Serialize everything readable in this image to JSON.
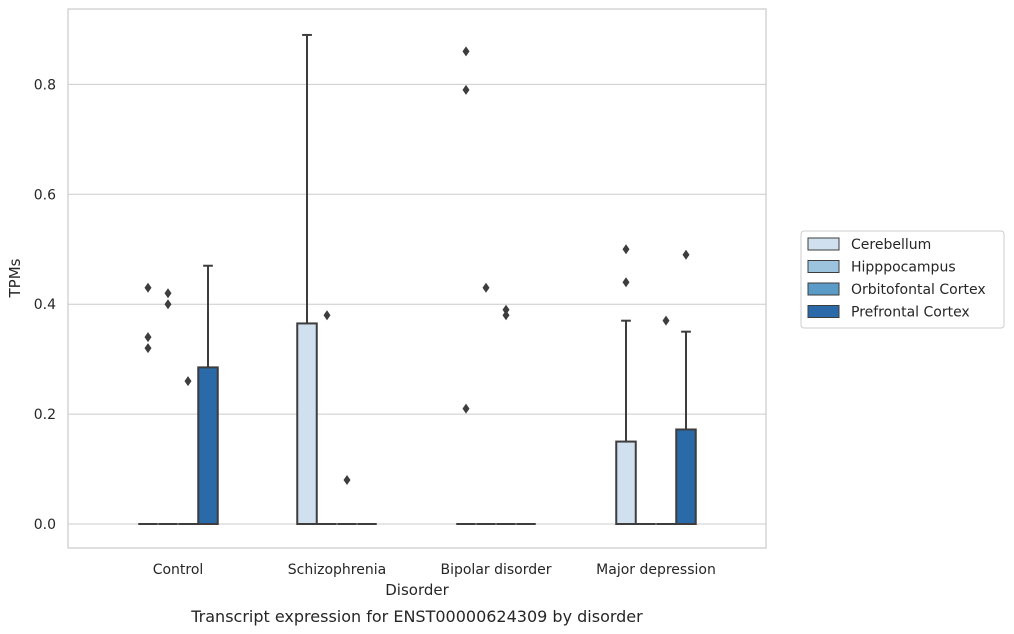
{
  "chart_data": {
    "type": "box",
    "title": "",
    "caption": "Transcript expression for ENST00000624309 by disorder",
    "xlabel": "Disorder",
    "ylabel": "TPMs",
    "ylim": [
      -0.044,
      0.935
    ],
    "yticks": [
      0.0,
      0.2,
      0.4,
      0.6,
      0.8
    ],
    "ytick_labels": [
      "0.0",
      "0.2",
      "0.4",
      "0.6",
      "0.8"
    ],
    "grid": "horizontal",
    "legend_position": "right",
    "categories": [
      "Control",
      "Schizophrenia",
      "Bipolar disorder",
      "Major depression"
    ],
    "series": [
      {
        "name": "Cerebellum",
        "color": "#d0e0ef",
        "boxes": [
          {
            "q1": 0,
            "median": 0,
            "q3": 0,
            "whisker_low": 0,
            "whisker_high": 0,
            "outliers": [
              0.43,
              0.34,
              0.32
            ]
          },
          {
            "q1": 0,
            "median": 0,
            "q3": 0.365,
            "whisker_low": 0,
            "whisker_high": 0.89,
            "outliers": []
          },
          {
            "q1": 0,
            "median": 0,
            "q3": 0,
            "whisker_low": 0,
            "whisker_high": 0,
            "outliers": [
              0.86,
              0.79,
              0.21
            ]
          },
          {
            "q1": 0,
            "median": 0,
            "q3": 0.15,
            "whisker_low": 0,
            "whisker_high": 0.37,
            "outliers": [
              0.5,
              0.44
            ]
          }
        ]
      },
      {
        "name": "Hipppocampus",
        "color": "#9dc4de",
        "boxes": [
          {
            "q1": 0,
            "median": 0,
            "q3": 0,
            "whisker_low": 0,
            "whisker_high": 0,
            "outliers": [
              0.42,
              0.4
            ]
          },
          {
            "q1": 0,
            "median": 0,
            "q3": 0,
            "whisker_low": 0,
            "whisker_high": 0,
            "outliers": [
              0.38
            ]
          },
          {
            "q1": 0,
            "median": 0,
            "q3": 0,
            "whisker_low": 0,
            "whisker_high": 0,
            "outliers": [
              0.43
            ]
          },
          {
            "q1": 0,
            "median": 0,
            "q3": 0,
            "whisker_low": 0,
            "whisker_high": 0,
            "outliers": []
          }
        ]
      },
      {
        "name": "Orbitofontal Cortex",
        "color": "#5b9bc8",
        "boxes": [
          {
            "q1": 0,
            "median": 0,
            "q3": 0,
            "whisker_low": 0,
            "whisker_high": 0,
            "outliers": [
              0.26
            ]
          },
          {
            "q1": 0,
            "median": 0,
            "q3": 0,
            "whisker_low": 0,
            "whisker_high": 0,
            "outliers": [
              0.08
            ]
          },
          {
            "q1": 0,
            "median": 0,
            "q3": 0,
            "whisker_low": 0,
            "whisker_high": 0,
            "outliers": [
              0.39,
              0.38
            ]
          },
          {
            "q1": 0,
            "median": 0,
            "q3": 0,
            "whisker_low": 0,
            "whisker_high": 0,
            "outliers": [
              0.37
            ]
          }
        ]
      },
      {
        "name": "Prefrontal Cortex",
        "color": "#2a6aa8",
        "boxes": [
          {
            "q1": 0,
            "median": 0,
            "q3": 0.285,
            "whisker_low": 0,
            "whisker_high": 0.47,
            "outliers": []
          },
          {
            "q1": 0,
            "median": 0,
            "q3": 0,
            "whisker_low": 0,
            "whisker_high": 0,
            "outliers": []
          },
          {
            "q1": 0,
            "median": 0,
            "q3": 0,
            "whisker_low": 0,
            "whisker_high": 0,
            "outliers": []
          },
          {
            "q1": 0,
            "median": 0,
            "q3": 0.172,
            "whisker_low": 0,
            "whisker_high": 0.35,
            "outliers": [
              0.49
            ]
          }
        ]
      }
    ]
  }
}
